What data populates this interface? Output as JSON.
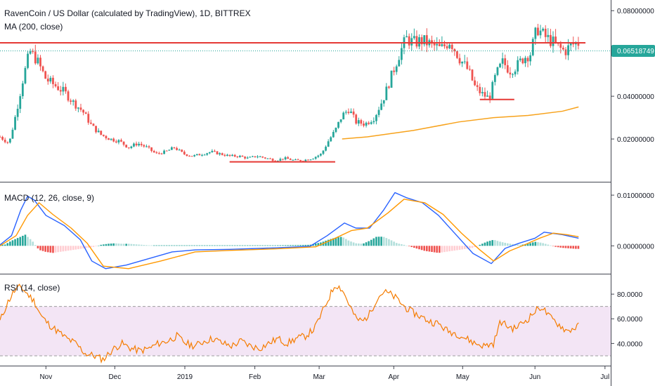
{
  "chart_data": [
    {
      "type": "candlestick",
      "title": "RavenCoin / US Dollar (calculated by TradingView), 1D, BITTREX",
      "indicator": "MA (200, close)",
      "y_ticks": [
        "0.08000000",
        "0.06000000",
        "0.04000000",
        "0.02000000"
      ],
      "ylim": [
        0.0,
        0.085
      ],
      "current_price": "0.06518749",
      "price_path": [
        [
          0,
          0.021
        ],
        [
          8,
          0.018
        ],
        [
          14,
          0.032
        ],
        [
          20,
          0.048
        ],
        [
          26,
          0.061
        ],
        [
          32,
          0.057
        ],
        [
          40,
          0.048
        ],
        [
          48,
          0.045
        ],
        [
          56,
          0.042
        ],
        [
          64,
          0.037
        ],
        [
          72,
          0.033
        ],
        [
          80,
          0.026
        ],
        [
          88,
          0.022
        ],
        [
          96,
          0.02
        ],
        [
          104,
          0.019
        ],
        [
          112,
          0.016
        ],
        [
          120,
          0.018
        ],
        [
          128,
          0.016
        ],
        [
          136,
          0.013
        ],
        [
          144,
          0.014
        ],
        [
          152,
          0.016
        ],
        [
          160,
          0.013
        ],
        [
          168,
          0.012
        ],
        [
          176,
          0.013
        ],
        [
          184,
          0.014
        ],
        [
          192,
          0.013
        ],
        [
          200,
          0.012
        ],
        [
          208,
          0.012
        ],
        [
          216,
          0.011
        ],
        [
          224,
          0.012
        ],
        [
          232,
          0.011
        ],
        [
          240,
          0.01
        ],
        [
          248,
          0.011
        ],
        [
          256,
          0.01
        ],
        [
          264,
          0.01
        ],
        [
          272,
          0.011
        ],
        [
          280,
          0.013
        ],
        [
          286,
          0.019
        ],
        [
          292,
          0.024
        ],
        [
          298,
          0.031
        ],
        [
          304,
          0.034
        ],
        [
          310,
          0.028
        ],
        [
          318,
          0.027
        ],
        [
          326,
          0.03
        ],
        [
          334,
          0.039
        ],
        [
          342,
          0.051
        ],
        [
          348,
          0.06
        ],
        [
          354,
          0.067
        ],
        [
          360,
          0.065
        ],
        [
          368,
          0.066
        ],
        [
          376,
          0.064
        ],
        [
          384,
          0.062
        ],
        [
          392,
          0.066
        ],
        [
          400,
          0.058
        ],
        [
          408,
          0.052
        ],
        [
          414,
          0.044
        ],
        [
          420,
          0.041
        ],
        [
          426,
          0.039
        ],
        [
          432,
          0.05
        ],
        [
          438,
          0.056
        ],
        [
          444,
          0.052
        ],
        [
          450,
          0.054
        ],
        [
          456,
          0.058
        ],
        [
          462,
          0.06
        ],
        [
          468,
          0.072
        ],
        [
          474,
          0.068
        ],
        [
          480,
          0.066
        ],
        [
          486,
          0.063
        ],
        [
          492,
          0.061
        ],
        [
          498,
          0.064
        ],
        [
          504,
          0.065
        ]
      ],
      "ma_path": [
        [
          298,
          0.02
        ],
        [
          320,
          0.021
        ],
        [
          360,
          0.024
        ],
        [
          400,
          0.028
        ],
        [
          430,
          0.03
        ],
        [
          460,
          0.031
        ],
        [
          490,
          0.033
        ],
        [
          504,
          0.035
        ]
      ],
      "annotations": [
        {
          "type": "hline",
          "value": 0.065,
          "x_from": 0,
          "x_to": 510,
          "color": "#e53935"
        },
        {
          "type": "segment",
          "value": 0.0093,
          "x_from": 200,
          "x_to": 292,
          "color": "#e53935"
        },
        {
          "type": "segment",
          "value": 0.0385,
          "x_from": 418,
          "x_to": 448,
          "color": "#e53935"
        }
      ]
    },
    {
      "type": "line",
      "title": "MACD (12, 26, close, 9)",
      "y_ticks": [
        "0.01000000",
        "0.00000000"
      ],
      "ylim": [
        -0.0055,
        0.0125
      ],
      "series": [
        {
          "values": [
            [
              0,
              0.0002
            ],
            [
              10,
              0.002
            ],
            [
              18,
              0.007
            ],
            [
              24,
              0.0098
            ],
            [
              30,
              0.009
            ],
            [
              40,
              0.006
            ],
            [
              56,
              0.004
            ],
            [
              70,
              0.0012
            ],
            [
              80,
              -0.003
            ],
            [
              92,
              -0.0045
            ],
            [
              110,
              -0.0038
            ],
            [
              130,
              -0.0025
            ],
            [
              150,
              -0.0012
            ],
            [
              170,
              -0.0008
            ],
            [
              200,
              -0.0007
            ],
            [
              240,
              -0.0004
            ],
            [
              270,
              -0.0001
            ],
            [
              285,
              0.002
            ],
            [
              300,
              0.0045
            ],
            [
              310,
              0.0035
            ],
            [
              322,
              0.0035
            ],
            [
              334,
              0.007
            ],
            [
              344,
              0.0105
            ],
            [
              354,
              0.0095
            ],
            [
              368,
              0.0085
            ],
            [
              382,
              0.006
            ],
            [
              398,
              0.002
            ],
            [
              412,
              -0.0015
            ],
            [
              428,
              -0.0035
            ],
            [
              440,
              -0.0005
            ],
            [
              452,
              0.0005
            ],
            [
              466,
              0.0015
            ],
            [
              474,
              0.0027
            ],
            [
              490,
              0.0022
            ],
            [
              504,
              0.0015
            ]
          ]
        },
        {
          "values": [
            [
              0,
              0.0
            ],
            [
              14,
              0.002
            ],
            [
              24,
              0.006
            ],
            [
              34,
              0.0085
            ],
            [
              46,
              0.0062
            ],
            [
              62,
              0.0035
            ],
            [
              76,
              0.0005
            ],
            [
              90,
              -0.004
            ],
            [
              112,
              -0.0045
            ],
            [
              140,
              -0.003
            ],
            [
              170,
              -0.0012
            ],
            [
              200,
              -0.0009
            ],
            [
              240,
              -0.0006
            ],
            [
              275,
              -0.0002
            ],
            [
              292,
              0.0015
            ],
            [
              306,
              0.003
            ],
            [
              320,
              0.0035
            ],
            [
              338,
              0.0065
            ],
            [
              352,
              0.0092
            ],
            [
              370,
              0.0085
            ],
            [
              386,
              0.0062
            ],
            [
              402,
              0.0025
            ],
            [
              418,
              -0.0008
            ],
            [
              430,
              -0.003
            ],
            [
              444,
              -0.001
            ],
            [
              458,
              0.0003
            ],
            [
              470,
              0.0015
            ],
            [
              482,
              0.0025
            ],
            [
              494,
              0.0022
            ],
            [
              504,
              0.0018
            ]
          ]
        }
      ],
      "histogram": [
        [
          4,
          0.0002
        ],
        [
          10,
          0.001
        ],
        [
          16,
          0.0016
        ],
        [
          22,
          0.0022
        ],
        [
          28,
          0.001
        ],
        [
          34,
          -0.0008
        ],
        [
          40,
          -0.0012
        ],
        [
          46,
          -0.0014
        ],
        [
          52,
          -0.0012
        ],
        [
          58,
          -0.001
        ],
        [
          64,
          -0.0008
        ],
        [
          70,
          -0.0006
        ],
        [
          76,
          -0.0004
        ],
        [
          82,
          -0.0002
        ],
        [
          88,
          0.0002
        ],
        [
          94,
          0.0004
        ],
        [
          100,
          0.0005
        ],
        [
          106,
          0.0004
        ],
        [
          112,
          0.0004
        ],
        [
          118,
          0.0003
        ],
        [
          124,
          0.0002
        ],
        [
          130,
          0.0001
        ],
        [
          160,
          0.0001
        ],
        [
          200,
          0.0001
        ],
        [
          240,
          0.0001
        ],
        [
          270,
          0.0002
        ],
        [
          280,
          0.0007
        ],
        [
          286,
          0.0012
        ],
        [
          292,
          0.0016
        ],
        [
          298,
          0.0018
        ],
        [
          304,
          0.001
        ],
        [
          310,
          0.0005
        ],
        [
          316,
          0.0004
        ],
        [
          322,
          0.001
        ],
        [
          328,
          0.0018
        ],
        [
          334,
          0.0018
        ],
        [
          340,
          0.0012
        ],
        [
          346,
          0.0005
        ],
        [
          352,
          0.0002
        ],
        [
          358,
          -0.0002
        ],
        [
          364,
          -0.0006
        ],
        [
          370,
          -0.001
        ],
        [
          376,
          -0.0012
        ],
        [
          382,
          -0.0014
        ],
        [
          388,
          -0.0012
        ],
        [
          394,
          -0.001
        ],
        [
          400,
          -0.0008
        ],
        [
          406,
          -0.0006
        ],
        [
          412,
          -0.0004
        ],
        [
          418,
          0.0002
        ],
        [
          424,
          0.0008
        ],
        [
          430,
          0.0012
        ],
        [
          436,
          0.0008
        ],
        [
          442,
          0.0005
        ],
        [
          448,
          0.0003
        ],
        [
          454,
          0.0002
        ],
        [
          460,
          0.0004
        ],
        [
          466,
          0.0008
        ],
        [
          472,
          0.0006
        ],
        [
          478,
          0.0002
        ],
        [
          484,
          -0.0002
        ],
        [
          490,
          -0.0004
        ],
        [
          496,
          -0.0005
        ],
        [
          502,
          -0.0006
        ]
      ]
    },
    {
      "type": "line",
      "title": "RSI (14, close)",
      "y_ticks": [
        "80.0000",
        "60.0000",
        "40.0000"
      ],
      "ylim": [
        22,
        96
      ],
      "bands": [
        30,
        70
      ],
      "series": [
        {
          "values": [
            [
              0,
              58
            ],
            [
              6,
              72
            ],
            [
              12,
              82
            ],
            [
              18,
              86
            ],
            [
              24,
              80
            ],
            [
              30,
              74
            ],
            [
              36,
              62
            ],
            [
              42,
              56
            ],
            [
              50,
              50
            ],
            [
              58,
              44
            ],
            [
              66,
              40
            ],
            [
              74,
              32
            ],
            [
              82,
              30
            ],
            [
              90,
              27
            ],
            [
              98,
              35
            ],
            [
              106,
              40
            ],
            [
              114,
              36
            ],
            [
              122,
              34
            ],
            [
              130,
              36
            ],
            [
              138,
              40
            ],
            [
              146,
              42
            ],
            [
              154,
              46
            ],
            [
              162,
              40
            ],
            [
              170,
              38
            ],
            [
              178,
              42
            ],
            [
              186,
              44
            ],
            [
              194,
              40
            ],
            [
              202,
              38
            ],
            [
              210,
              42
            ],
            [
              218,
              38
            ],
            [
              226,
              36
            ],
            [
              234,
              40
            ],
            [
              242,
              44
            ],
            [
              250,
              40
            ],
            [
              258,
              44
            ],
            [
              266,
              46
            ],
            [
              274,
              52
            ],
            [
              280,
              64
            ],
            [
              286,
              76
            ],
            [
              292,
              88
            ],
            [
              298,
              84
            ],
            [
              304,
              72
            ],
            [
              310,
              60
            ],
            [
              316,
              58
            ],
            [
              322,
              64
            ],
            [
              328,
              76
            ],
            [
              334,
              82
            ],
            [
              340,
              80
            ],
            [
              346,
              76
            ],
            [
              352,
              70
            ],
            [
              358,
              66
            ],
            [
              366,
              62
            ],
            [
              374,
              58
            ],
            [
              382,
              56
            ],
            [
              390,
              50
            ],
            [
              398,
              48
            ],
            [
              406,
              44
            ],
            [
              414,
              40
            ],
            [
              422,
              38
            ],
            [
              430,
              40
            ],
            [
              436,
              58
            ],
            [
              442,
              54
            ],
            [
              448,
              52
            ],
            [
              454,
              56
            ],
            [
              460,
              60
            ],
            [
              466,
              66
            ],
            [
              472,
              70
            ],
            [
              478,
              62
            ],
            [
              486,
              56
            ],
            [
              494,
              50
            ],
            [
              504,
              54
            ]
          ]
        }
      ]
    }
  ],
  "x_axis": {
    "ticks": [
      {
        "label": "Nov",
        "x": 40
      },
      {
        "label": "Dec",
        "x": 100
      },
      {
        "label": "2019",
        "x": 161
      },
      {
        "label": "Feb",
        "x": 222
      },
      {
        "label": "Mar",
        "x": 278
      },
      {
        "label": "Apr",
        "x": 343
      },
      {
        "label": "May",
        "x": 403
      },
      {
        "label": "Jun",
        "x": 466
      },
      {
        "label": "Jul",
        "x": 527
      }
    ],
    "range": [
      0,
      532
    ]
  },
  "colors": {
    "up": "#26a69a",
    "down": "#ef5350",
    "ma": "#f7a21b",
    "macd": "#2962ff",
    "signal": "#ff9800",
    "rsi": "#f57c00",
    "rsi_band": "#f3e5f5",
    "annotation": "#e53935",
    "price_label_bg": "#26a69a"
  }
}
